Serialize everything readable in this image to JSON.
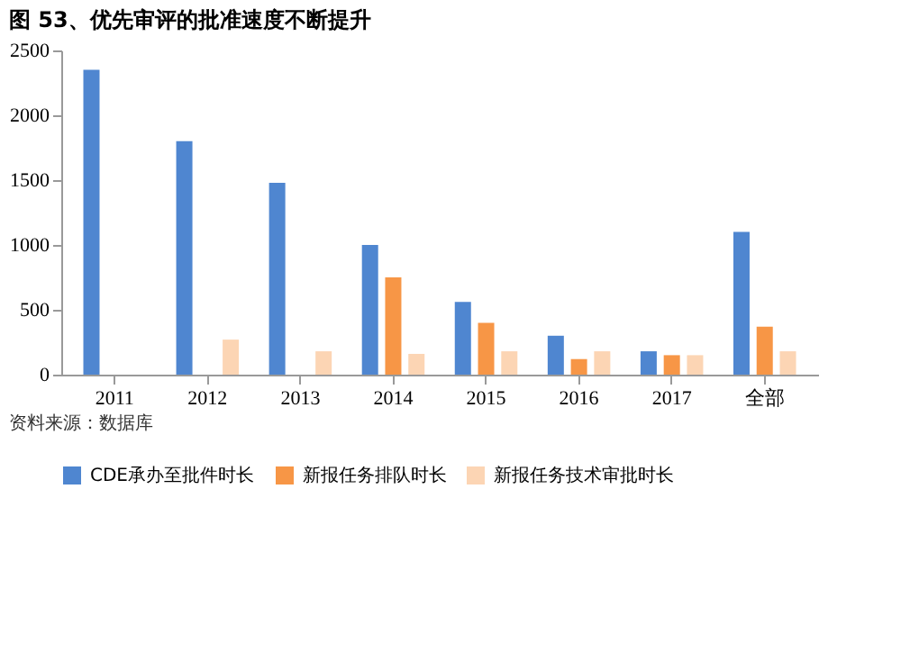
{
  "chart_data": {
    "type": "bar",
    "title": "图 53、优先审评的批准速度不断提升",
    "categories": [
      "2011",
      "2012",
      "2013",
      "2014",
      "2015",
      "2016",
      "2017",
      "全部"
    ],
    "series": [
      {
        "name": "CDE承办至批件时长",
        "color": "#4f86d0",
        "values": [
          2350,
          1800,
          1480,
          1000,
          560,
          300,
          180,
          1100
        ]
      },
      {
        "name": "新报任务排队时长",
        "color": "#f79646",
        "values": [
          null,
          null,
          null,
          750,
          400,
          120,
          150,
          370
        ]
      },
      {
        "name": "新报任务技术审批时长",
        "color": "#fcd5b4",
        "values": [
          null,
          270,
          180,
          160,
          180,
          180,
          150,
          180
        ]
      }
    ],
    "ylim": [
      0,
      2500
    ],
    "yticks": [
      0,
      500,
      1000,
      1500,
      2000,
      2500
    ],
    "grid": false,
    "legend": "bottom",
    "annotations": [
      "资料来源：数据库"
    ]
  }
}
